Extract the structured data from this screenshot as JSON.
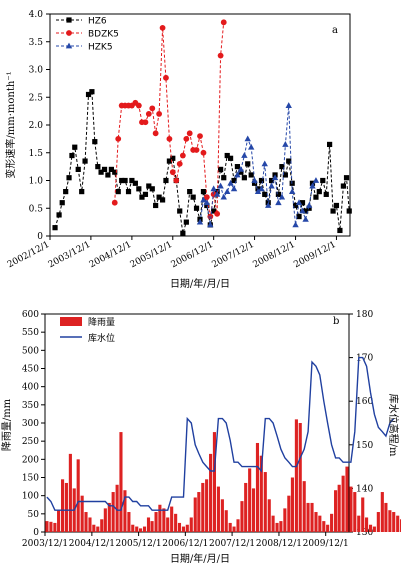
{
  "chart_data": [
    {
      "type": "line",
      "panel_label": "a",
      "xlabel": "日期/年/月/日",
      "ylabel": "变形速率/mm·month⁻¹",
      "ylim": [
        0,
        4.0
      ],
      "yticks": [
        "0",
        "0.5",
        "1.0",
        "1.5",
        "2.0",
        "2.5",
        "3.0",
        "3.5",
        "4.0"
      ],
      "xlim": [
        "2002-12-01",
        "2010-04-01"
      ],
      "xtick_labels": [
        "2002/12/1",
        "2003/12/1",
        "2004/12/1",
        "2005/12/1",
        "2006/12/1",
        "2007/12/1",
        "2008/12/1",
        "2009/12/1"
      ],
      "legend_position": "top-left",
      "grid": false,
      "series": [
        {
          "name": "HZ6",
          "color": "#000000",
          "marker": "square",
          "points": [
            [
              "2003-01-15",
              0.15
            ],
            [
              "2003-02-20",
              0.38
            ],
            [
              "2003-03-20",
              0.6
            ],
            [
              "2003-04-20",
              0.8
            ],
            [
              "2003-05-20",
              1.05
            ],
            [
              "2003-06-15",
              1.45
            ],
            [
              "2003-07-10",
              1.6
            ],
            [
              "2003-08-10",
              1.2
            ],
            [
              "2003-09-10",
              0.8
            ],
            [
              "2003-10-10",
              1.35
            ],
            [
              "2003-11-10",
              2.55
            ],
            [
              "2003-12-10",
              2.6
            ],
            [
              "2004-01-05",
              1.7
            ],
            [
              "2004-02-01",
              1.25
            ],
            [
              "2004-03-01",
              1.15
            ],
            [
              "2004-04-01",
              1.2
            ],
            [
              "2004-05-01",
              1.1
            ],
            [
              "2004-06-01",
              1.2
            ],
            [
              "2004-07-01",
              1.15
            ],
            [
              "2004-08-01",
              0.8
            ],
            [
              "2004-09-01",
              1.0
            ],
            [
              "2004-10-01",
              1.0
            ],
            [
              "2004-11-01",
              0.8
            ],
            [
              "2004-12-01",
              1.0
            ],
            [
              "2005-01-01",
              0.95
            ],
            [
              "2005-02-01",
              0.85
            ],
            [
              "2005-03-01",
              0.7
            ],
            [
              "2005-04-01",
              0.75
            ],
            [
              "2005-05-01",
              0.9
            ],
            [
              "2005-06-01",
              0.85
            ],
            [
              "2005-07-01",
              0.55
            ],
            [
              "2005-08-01",
              0.7
            ],
            [
              "2005-09-01",
              0.65
            ],
            [
              "2005-10-01",
              1.0
            ],
            [
              "2005-11-01",
              1.35
            ],
            [
              "2005-12-01",
              1.4
            ],
            [
              "2006-01-01",
              1.0
            ],
            [
              "2006-02-01",
              0.45
            ],
            [
              "2006-03-01",
              0.05
            ],
            [
              "2006-04-01",
              0.25
            ],
            [
              "2006-05-01",
              0.8
            ],
            [
              "2006-06-01",
              0.7
            ],
            [
              "2006-07-01",
              0.5
            ],
            [
              "2006-08-01",
              0.3
            ],
            [
              "2006-09-01",
              0.8
            ],
            [
              "2006-10-01",
              0.55
            ],
            [
              "2006-11-01",
              0.2
            ],
            [
              "2006-12-01",
              0.45
            ],
            [
              "2007-01-01",
              0.8
            ],
            [
              "2007-02-01",
              1.2
            ],
            [
              "2007-03-01",
              1.05
            ],
            [
              "2007-04-01",
              1.45
            ],
            [
              "2007-05-01",
              1.4
            ],
            [
              "2007-06-01",
              1.0
            ],
            [
              "2007-07-01",
              1.25
            ],
            [
              "2007-08-01",
              1.15
            ],
            [
              "2007-09-01",
              1.05
            ],
            [
              "2007-10-01",
              1.3
            ],
            [
              "2007-11-01",
              1.1
            ],
            [
              "2007-12-01",
              0.95
            ],
            [
              "2008-01-01",
              0.85
            ],
            [
              "2008-02-01",
              1.0
            ],
            [
              "2008-03-01",
              0.75
            ],
            [
              "2008-04-01",
              0.6
            ],
            [
              "2008-05-01",
              1.0
            ],
            [
              "2008-06-01",
              1.1
            ],
            [
              "2008-07-01",
              0.75
            ],
            [
              "2008-08-01",
              1.25
            ],
            [
              "2008-09-01",
              1.1
            ],
            [
              "2008-10-01",
              1.35
            ],
            [
              "2008-11-01",
              0.95
            ],
            [
              "2008-12-01",
              0.55
            ],
            [
              "2009-01-01",
              0.35
            ],
            [
              "2009-02-01",
              0.6
            ],
            [
              "2009-03-01",
              0.45
            ],
            [
              "2009-04-01",
              0.5
            ],
            [
              "2009-05-01",
              0.95
            ],
            [
              "2009-06-01",
              0.7
            ],
            [
              "2009-07-01",
              0.8
            ],
            [
              "2009-08-01",
              1.0
            ],
            [
              "2009-09-01",
              0.75
            ],
            [
              "2009-10-01",
              1.65
            ],
            [
              "2009-11-01",
              0.45
            ],
            [
              "2009-12-01",
              0.55
            ],
            [
              "2010-01-01",
              0.1
            ],
            [
              "2010-02-01",
              0.9
            ],
            [
              "2010-03-01",
              1.05
            ],
            [
              "2010-03-25",
              0.45
            ]
          ]
        },
        {
          "name": "BDZK5",
          "color": "#e31a1c",
          "marker": "circle",
          "points": [
            [
              "2004-07-01",
              0.6
            ],
            [
              "2004-08-01",
              1.75
            ],
            [
              "2004-09-01",
              2.35
            ],
            [
              "2004-10-01",
              2.35
            ],
            [
              "2004-11-01",
              2.35
            ],
            [
              "2004-12-01",
              2.35
            ],
            [
              "2005-01-01",
              2.4
            ],
            [
              "2005-02-01",
              2.35
            ],
            [
              "2005-03-01",
              2.05
            ],
            [
              "2005-04-01",
              2.05
            ],
            [
              "2005-05-01",
              2.2
            ],
            [
              "2005-06-01",
              2.3
            ],
            [
              "2005-07-01",
              1.85
            ],
            [
              "2005-08-01",
              2.2
            ],
            [
              "2005-09-01",
              3.75
            ],
            [
              "2005-10-01",
              2.85
            ],
            [
              "2005-11-01",
              1.75
            ],
            [
              "2005-12-01",
              1.15
            ],
            [
              "2006-01-01",
              1.0
            ],
            [
              "2006-02-01",
              1.3
            ],
            [
              "2006-03-01",
              1.45
            ],
            [
              "2006-04-01",
              1.75
            ],
            [
              "2006-05-01",
              1.85
            ],
            [
              "2006-06-01",
              1.55
            ],
            [
              "2006-07-01",
              1.55
            ],
            [
              "2006-08-01",
              1.8
            ],
            [
              "2006-09-01",
              1.5
            ],
            [
              "2006-10-01",
              0.7
            ],
            [
              "2006-11-01",
              0.35
            ],
            [
              "2006-12-01",
              0.75
            ],
            [
              "2007-01-01",
              0.4
            ],
            [
              "2007-02-01",
              3.25
            ],
            [
              "2007-03-01",
              3.85
            ]
          ]
        },
        {
          "name": "HZK5",
          "color": "#2547a8",
          "marker": "triangle",
          "points": [
            [
              "2006-08-01",
              0.25
            ],
            [
              "2006-09-01",
              0.65
            ],
            [
              "2006-10-01",
              0.6
            ],
            [
              "2006-11-01",
              0.2
            ],
            [
              "2006-12-01",
              0.85
            ],
            [
              "2007-01-01",
              0.75
            ],
            [
              "2007-02-01",
              0.9
            ],
            [
              "2007-03-01",
              0.7
            ],
            [
              "2007-04-01",
              0.8
            ],
            [
              "2007-05-01",
              0.95
            ],
            [
              "2007-06-01",
              0.85
            ],
            [
              "2007-07-01",
              1.1
            ],
            [
              "2007-08-01",
              1.2
            ],
            [
              "2007-09-01",
              1.45
            ],
            [
              "2007-10-01",
              1.75
            ],
            [
              "2007-11-01",
              1.6
            ],
            [
              "2007-12-01",
              1.0
            ],
            [
              "2008-01-01",
              0.8
            ],
            [
              "2008-02-01",
              0.85
            ],
            [
              "2008-03-01",
              1.3
            ],
            [
              "2008-04-01",
              0.55
            ],
            [
              "2008-05-01",
              0.9
            ],
            [
              "2008-06-01",
              1.05
            ],
            [
              "2008-07-01",
              0.6
            ],
            [
              "2008-08-01",
              0.7
            ],
            [
              "2008-09-01",
              1.65
            ],
            [
              "2008-10-01",
              2.35
            ],
            [
              "2008-11-01",
              0.8
            ],
            [
              "2008-12-01",
              0.2
            ],
            [
              "2009-01-01",
              0.6
            ],
            [
              "2009-02-01",
              0.45
            ],
            [
              "2009-03-01",
              0.3
            ],
            [
              "2009-04-01",
              0.55
            ],
            [
              "2009-05-01",
              0.9
            ],
            [
              "2009-06-01",
              1.0
            ]
          ]
        }
      ]
    },
    {
      "type": "bar",
      "panel_label": "b",
      "xlabel": "日期/年/月/日",
      "ylabel": "降雨量/mm",
      "y2label": "库水位高程/m",
      "ylim": [
        0,
        600
      ],
      "yticks": [
        "0",
        "50",
        "100",
        "150",
        "200",
        "250",
        "300",
        "350",
        "400",
        "450",
        "500",
        "550",
        "600"
      ],
      "y2lim": [
        130,
        180
      ],
      "y2ticks": [
        "130",
        "140",
        "150",
        "160",
        "170",
        "180"
      ],
      "xlim": [
        "2003-12-01",
        "2010-06-01"
      ],
      "xtick_labels": [
        "2003/12/1",
        "2004/12/1",
        "2005/12/1",
        "2006/12/1",
        "2007/12/1",
        "2008/12/1",
        "2009/12/1"
      ],
      "legend_position": "top-left",
      "grid": false,
      "series": [
        {
          "name": "降雨量",
          "color": "#dd2222",
          "kind": "bar",
          "start": "2003-12-01",
          "step_months": 1,
          "values": [
            30,
            28,
            25,
            60,
            145,
            135,
            215,
            120,
            200,
            100,
            55,
            40,
            20,
            15,
            35,
            65,
            80,
            110,
            130,
            275,
            115,
            55,
            20,
            15,
            10,
            15,
            40,
            30,
            55,
            75,
            65,
            40,
            70,
            50,
            25,
            15,
            20,
            40,
            95,
            110,
            135,
            145,
            215,
            275,
            125,
            90,
            60,
            25,
            15,
            35,
            85,
            135,
            175,
            120,
            245,
            210,
            165,
            90,
            45,
            25,
            30,
            65,
            100,
            150,
            310,
            300,
            140,
            80,
            80,
            55,
            45,
            30,
            20,
            50,
            115,
            130,
            155,
            180,
            125,
            110,
            45,
            95,
            40,
            20,
            15,
            55,
            110,
            80,
            60,
            55,
            45,
            35,
            105,
            75
          ]
        },
        {
          "name": "库水位",
          "color": "#2040a0",
          "kind": "line",
          "start": "2003-12-01",
          "step_months": 1,
          "values": [
            138,
            137,
            135,
            135,
            135,
            135,
            135,
            135,
            137,
            137,
            137,
            137,
            137,
            137,
            137,
            137,
            136,
            136,
            135,
            135,
            138,
            138,
            137,
            137,
            136,
            136,
            136,
            135,
            135,
            135,
            135,
            135,
            138,
            138,
            138,
            138,
            156,
            155,
            150,
            148,
            146,
            145,
            144,
            144,
            156,
            156,
            155,
            151,
            146,
            146,
            145,
            145,
            145,
            145,
            145,
            144,
            156,
            156,
            155,
            152,
            149,
            147,
            146,
            145,
            145,
            147,
            149,
            153,
            169,
            168,
            166,
            160,
            155,
            150,
            147,
            147,
            146,
            146,
            146,
            153,
            170,
            170,
            168,
            162,
            157,
            154,
            153,
            152,
            155,
            156
          ]
        }
      ]
    }
  ]
}
